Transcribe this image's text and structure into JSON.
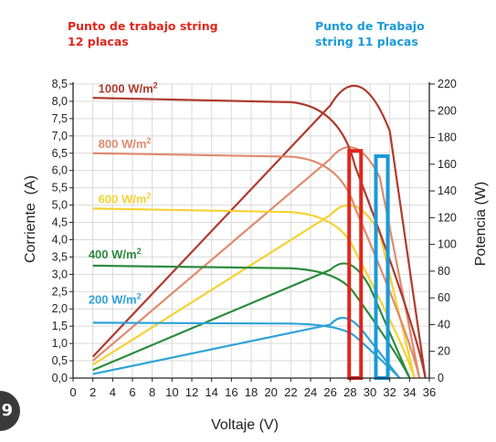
{
  "annotations": {
    "red": {
      "text": "Punto de trabajo string\n12 placas",
      "color": "#e0261c"
    },
    "blue": {
      "text": "Punto de Trabajo\nstring 11 placas",
      "color": "#1a9ad8"
    }
  },
  "badge": {
    "glyph": "9"
  },
  "chart_data": {
    "type": "line",
    "xlabel": "Voltaje (V)",
    "ylabel": "Corriente  (A)",
    "y2label": "Potencia (W)",
    "xlim": [
      0,
      36
    ],
    "ylim": [
      0,
      8.5
    ],
    "y2lim": [
      0,
      220
    ],
    "xticks": [
      0,
      2,
      4,
      6,
      8,
      10,
      12,
      14,
      16,
      18,
      20,
      22,
      24,
      26,
      28,
      30,
      32,
      34,
      36
    ],
    "yticks": [
      "0,0",
      "0,5",
      "1,0",
      "1,5",
      "2,0",
      "2,5",
      "3,0",
      "3,5",
      "4,0",
      "4,5",
      "5,0",
      "5,5",
      "6,0",
      "6,5",
      "7,0",
      "7,5",
      "8,0",
      "8,5"
    ],
    "y2ticks": [
      0,
      20,
      40,
      60,
      80,
      100,
      120,
      140,
      160,
      180,
      200,
      220
    ],
    "grid": true,
    "series": [
      {
        "name": "1000 W/m²",
        "label_prefix": "1000 W/m",
        "label_sup": "2",
        "color": "#b03a2e",
        "isc": 8.1,
        "knee_v": 26,
        "knee_i": 7.85,
        "voc": 35.6,
        "label_x": 2,
        "label_y": 8.2,
        "power": [
          [
            2,
            16
          ],
          [
            26,
            204
          ],
          [
            29,
            229
          ],
          [
            32,
            185
          ],
          [
            35.6,
            0
          ]
        ]
      },
      {
        "name": "800 W/m²",
        "label_prefix": "800 W/m",
        "label_sup": "2",
        "color": "#e08a6c",
        "isc": 6.5,
        "knee_v": 26,
        "knee_i": 6.3,
        "voc": 35,
        "label_x": 2,
        "label_y": 6.6,
        "power": [
          [
            2,
            13
          ],
          [
            26,
            164
          ],
          [
            28.5,
            175
          ],
          [
            31,
            150
          ],
          [
            35,
            0
          ]
        ]
      },
      {
        "name": "600 W/m²",
        "label_prefix": "600 W/m",
        "label_sup": "2",
        "color": "#f5d232",
        "isc": 4.9,
        "knee_v": 26,
        "knee_i": 4.7,
        "voc": 34.5,
        "label_x": 2,
        "label_y": 5.0,
        "power": [
          [
            2,
            10
          ],
          [
            26,
            122
          ],
          [
            28.5,
            130
          ],
          [
            31,
            108
          ],
          [
            34.5,
            0
          ]
        ]
      },
      {
        "name": "400 W/m²",
        "label_prefix": "400 W/m",
        "label_sup": "2",
        "color": "#2e8b3e",
        "isc": 3.25,
        "knee_v": 26,
        "knee_i": 3.1,
        "voc": 34,
        "label_x": 1,
        "label_y": 3.4,
        "power": [
          [
            2,
            6
          ],
          [
            26,
            81
          ],
          [
            28,
            83
          ],
          [
            30,
            68
          ],
          [
            34,
            0
          ]
        ]
      },
      {
        "name": "200 W/m²",
        "label_prefix": "200 W/m",
        "label_sup": "2",
        "color": "#2ea3d8",
        "isc": 1.6,
        "knee_v": 26,
        "knee_i": 1.55,
        "voc": 33,
        "label_x": 1,
        "label_y": 2.1,
        "power": [
          [
            2,
            3
          ],
          [
            26,
            40
          ],
          [
            27.5,
            41
          ],
          [
            29.5,
            33
          ],
          [
            33,
            0
          ]
        ]
      }
    ],
    "highlight_boxes": [
      {
        "color": "#e0261c",
        "x": [
          27.9,
          29.1
        ],
        "y2": [
          0,
          170
        ]
      },
      {
        "color": "#1a9ad8",
        "x": [
          30.6,
          31.8
        ],
        "y2": [
          0,
          166
        ]
      }
    ]
  }
}
